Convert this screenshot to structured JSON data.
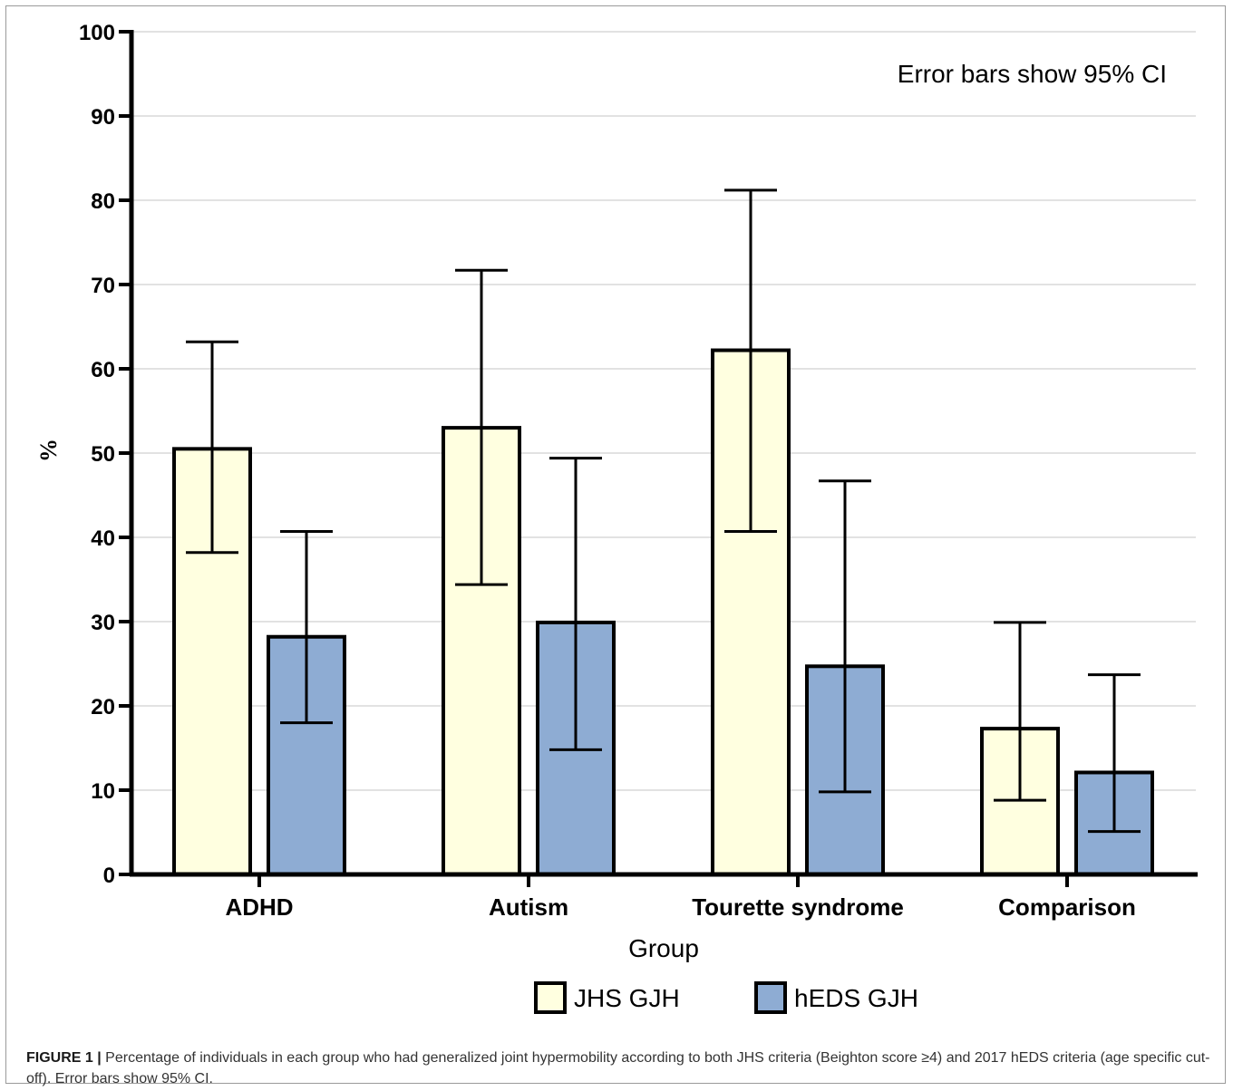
{
  "chart_data": {
    "type": "bar",
    "categories": [
      "ADHD",
      "Autism",
      "Tourette syndrome",
      "Comparison"
    ],
    "series": [
      {
        "name": "JHS GJH",
        "color": "#ffffe0",
        "values": [
          50.5,
          53.0,
          62.2,
          17.3
        ],
        "ci_low": [
          38.2,
          34.4,
          40.7,
          8.8
        ],
        "ci_high": [
          63.2,
          71.7,
          81.2,
          29.9
        ]
      },
      {
        "name": "hEDS GJH",
        "color": "#8eacd3",
        "values": [
          28.2,
          29.9,
          24.7,
          12.1
        ],
        "ci_low": [
          18.0,
          14.8,
          9.8,
          5.1
        ],
        "ci_high": [
          40.7,
          49.4,
          46.7,
          23.7
        ]
      }
    ],
    "xlabel": "Group",
    "ylabel": "%",
    "ylim": [
      0,
      100
    ],
    "yticks": [
      0,
      10,
      20,
      30,
      40,
      50,
      60,
      70,
      80,
      90,
      100
    ],
    "grid": true,
    "annotation": "Error bars show 95% CI",
    "legend_position": "bottom"
  },
  "caption": {
    "label": "FIGURE 1 |",
    "text": " Percentage of individuals in each group who had generalized joint hypermobility according to both JHS criteria (Beighton score ≥4) and 2017 hEDS criteria (age specific cut-off). Error bars show 95% CI."
  }
}
